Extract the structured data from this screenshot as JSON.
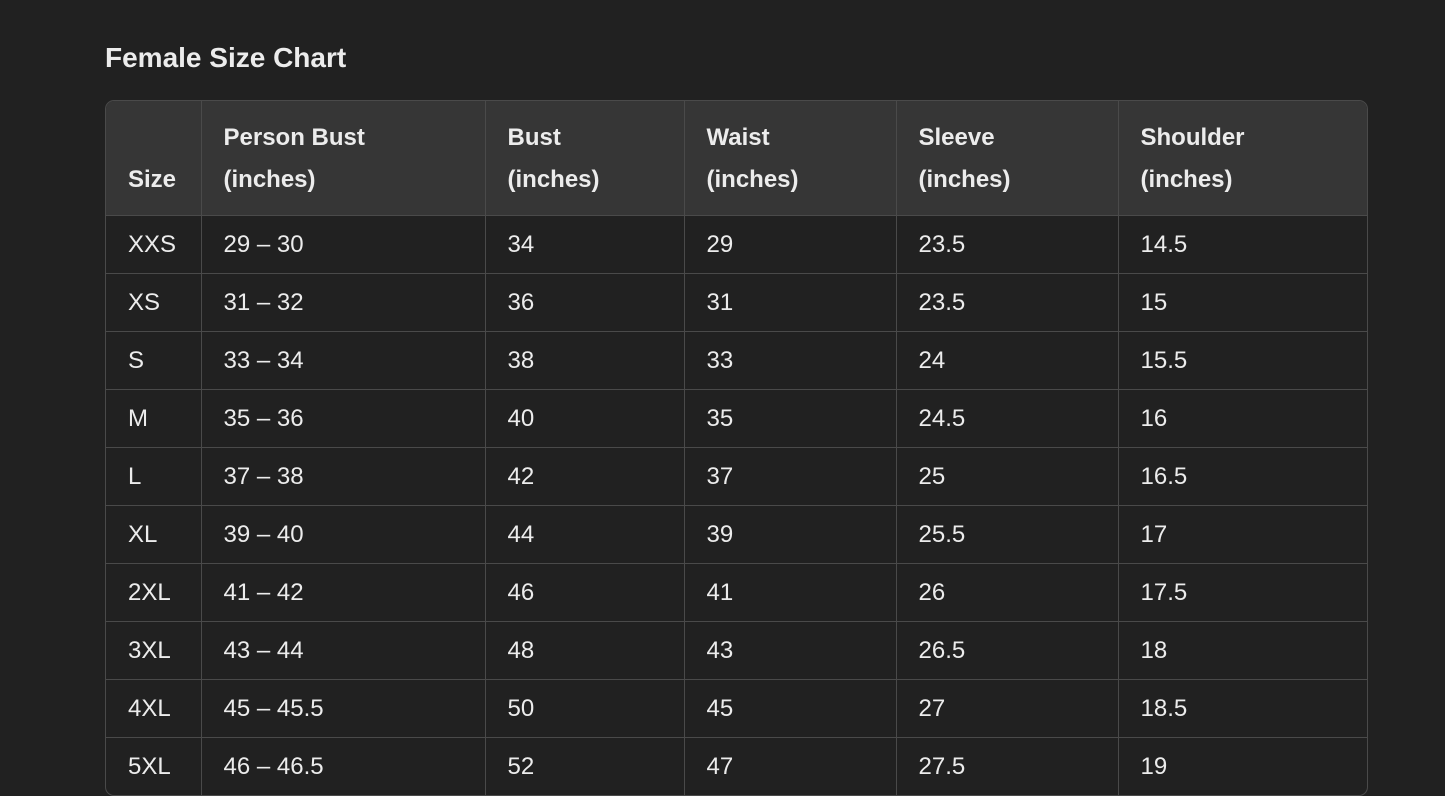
{
  "title": "Female Size Chart",
  "table": {
    "headers": [
      [
        "",
        "Size"
      ],
      [
        "Person Bust",
        "(inches)"
      ],
      [
        "Bust",
        "(inches)"
      ],
      [
        "Waist",
        "(inches)"
      ],
      [
        "Sleeve",
        "(inches)"
      ],
      [
        "Shoulder",
        "(inches)"
      ]
    ],
    "rows": [
      [
        "XXS",
        "29 – 30",
        "34",
        "29",
        "23.5",
        "14.5"
      ],
      [
        "XS",
        "31 – 32",
        "36",
        "31",
        "23.5",
        "15"
      ],
      [
        "S",
        "33 – 34",
        "38",
        "33",
        "24",
        "15.5"
      ],
      [
        "M",
        "35 – 36",
        "40",
        "35",
        "24.5",
        "16"
      ],
      [
        "L",
        "37 – 38",
        "42",
        "37",
        "25",
        "16.5"
      ],
      [
        "XL",
        "39 – 40",
        "44",
        "39",
        "25.5",
        "17"
      ],
      [
        "2XL",
        "41 – 42",
        "46",
        "41",
        "26",
        "17.5"
      ],
      [
        "3XL",
        "43 – 44",
        "48",
        "43",
        "26.5",
        "18"
      ],
      [
        "4XL",
        "45 – 45.5",
        "50",
        "45",
        "27",
        "18.5"
      ],
      [
        "5XL",
        "46 – 46.5",
        "52",
        "47",
        "27.5",
        "19"
      ]
    ]
  }
}
